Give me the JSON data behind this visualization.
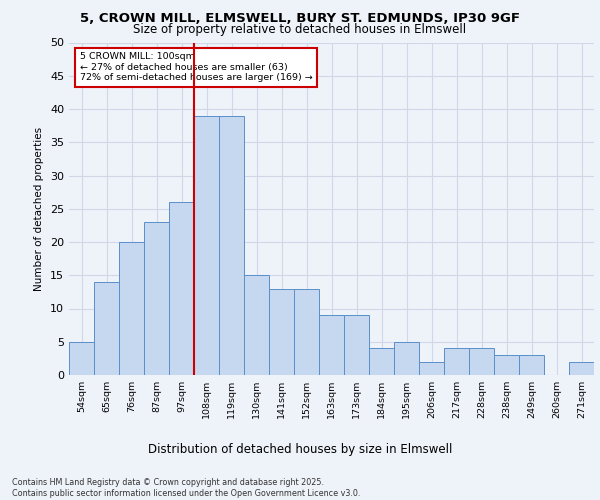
{
  "title_line1": "5, CROWN MILL, ELMSWELL, BURY ST. EDMUNDS, IP30 9GF",
  "title_line2": "Size of property relative to detached houses in Elmswell",
  "xlabel": "Distribution of detached houses by size in Elmswell",
  "ylabel": "Number of detached properties",
  "categories": [
    "54sqm",
    "65sqm",
    "76sqm",
    "87sqm",
    "97sqm",
    "108sqm",
    "119sqm",
    "130sqm",
    "141sqm",
    "152sqm",
    "163sqm",
    "173sqm",
    "184sqm",
    "195sqm",
    "206sqm",
    "217sqm",
    "228sqm",
    "238sqm",
    "249sqm",
    "260sqm",
    "271sqm"
  ],
  "values": [
    5,
    14,
    20,
    23,
    26,
    39,
    39,
    15,
    13,
    13,
    9,
    9,
    4,
    5,
    2,
    4,
    4,
    3,
    3,
    0,
    2
  ],
  "bar_color": "#c5d8f0",
  "bar_edge_color": "#5a8fca",
  "vline_index": 4.5,
  "vline_color": "#cc0000",
  "annotation_text": "5 CROWN MILL: 100sqm\n← 27% of detached houses are smaller (63)\n72% of semi-detached houses are larger (169) →",
  "annotation_box_color": "#ffffff",
  "annotation_box_edge": "#cc0000",
  "ylim": [
    0,
    50
  ],
  "yticks": [
    0,
    5,
    10,
    15,
    20,
    25,
    30,
    35,
    40,
    45,
    50
  ],
  "grid_color": "#d0d8e8",
  "bg_color": "#eef2f9",
  "footer": "Contains HM Land Registry data © Crown copyright and database right 2025.\nContains public sector information licensed under the Open Government Licence v3.0."
}
